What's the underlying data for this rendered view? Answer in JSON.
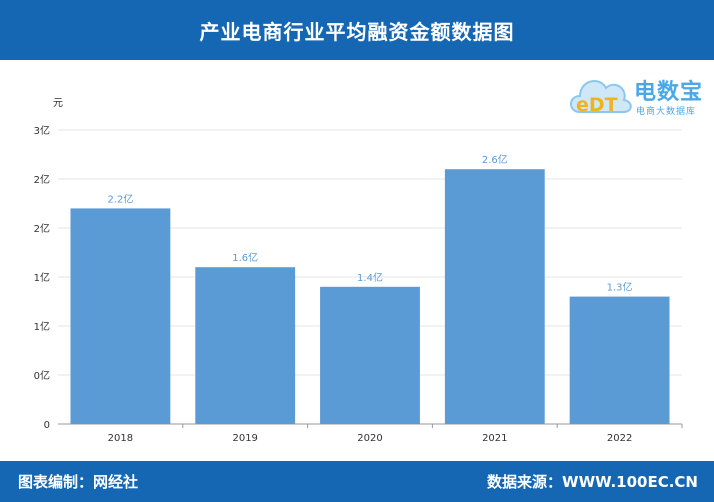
{
  "header": {
    "title": "产业电商行业平均融资金额数据图"
  },
  "footer": {
    "left": "图表编制：网经社",
    "right": "数据来源：WWW.100EC.CN"
  },
  "watermark": {
    "logo_text": "eDT",
    "name": "电数宝",
    "subtitle": "电商大数据库"
  },
  "colors": {
    "header_bg": "#1567b4",
    "bar": "#5b9bd5",
    "label": "#5b9bd5",
    "axis_text": "#333333",
    "grid": "#e6e6e6"
  },
  "chart_data": {
    "type": "bar",
    "unit_label": "元",
    "categories": [
      "2018",
      "2019",
      "2020",
      "2021",
      "2022"
    ],
    "values": [
      2.2,
      1.6,
      1.4,
      2.6,
      1.3
    ],
    "data_labels": [
      "2.2亿",
      "1.6亿",
      "1.4亿",
      "2.6亿",
      "1.3亿"
    ],
    "y_ticks": [
      "0",
      "0亿",
      "1亿",
      "1亿",
      "2亿",
      "2亿",
      "3亿"
    ],
    "ylim": [
      0,
      3
    ],
    "grid": true
  }
}
